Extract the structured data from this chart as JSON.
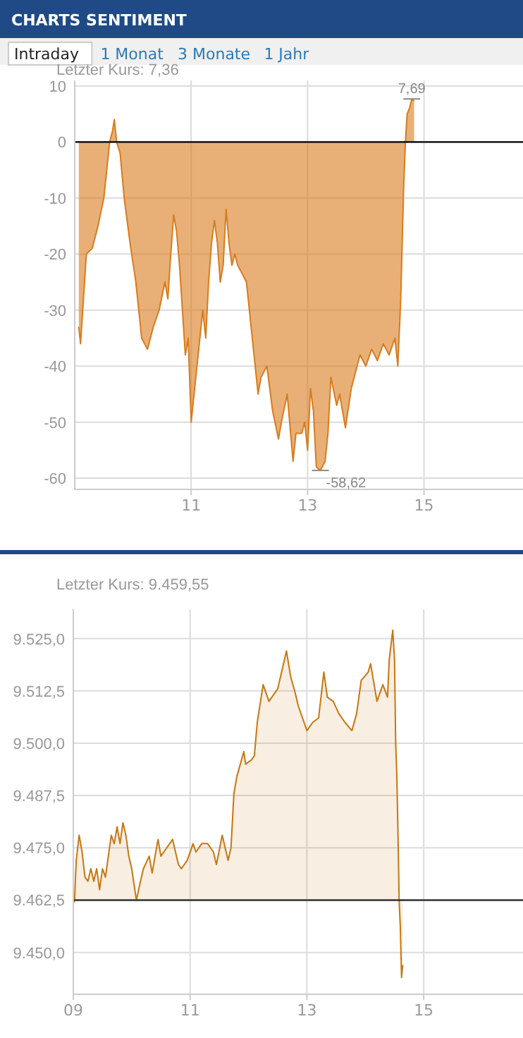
{
  "chart_data": [
    {
      "type": "area",
      "title": "CHARTS SENTIMENT",
      "subtitle": "Letzter Kurs: 7,36",
      "annotations": [
        "Intraday",
        "1 Monat",
        "3 Monate",
        "1 Jahr",
        {
          "text": "7,69",
          "x": 14.79,
          "y": 7.69
        },
        {
          "text": "-58,62",
          "x": 13.22,
          "y": -58.62
        }
      ],
      "xlim": [
        9,
        16.7
      ],
      "xticks": [
        11,
        13,
        15
      ],
      "ylim": [
        -62,
        11
      ],
      "yticks": [
        -60,
        -50,
        -40,
        -30,
        -20,
        -10,
        0,
        10
      ],
      "grid": true,
      "ref_lines": [
        {
          "axis": "y",
          "value": 0,
          "color": "#000000"
        }
      ],
      "series": [
        {
          "color": "#d97b1c",
          "x": [
            9.07,
            9.1,
            9.15,
            9.2,
            9.3,
            9.4,
            9.5,
            9.55,
            9.6,
            9.65,
            9.68,
            9.72,
            9.78,
            9.85,
            9.95,
            10.05,
            10.15,
            10.25,
            10.35,
            10.45,
            10.55,
            10.6,
            10.65,
            10.7,
            10.75,
            10.8,
            10.85,
            10.9,
            10.95,
            11.0,
            11.05,
            11.1,
            11.2,
            11.25,
            11.3,
            11.35,
            11.4,
            11.45,
            11.5,
            11.55,
            11.6,
            11.65,
            11.7,
            11.75,
            11.8,
            11.85,
            11.95,
            12.05,
            12.15,
            12.2,
            12.3,
            12.4,
            12.5,
            12.55,
            12.65,
            12.75,
            12.8,
            12.9,
            12.95,
            13.0,
            13.05,
            13.1,
            13.15,
            13.22,
            13.3,
            13.35,
            13.4,
            13.5,
            13.55,
            13.65,
            13.75,
            13.85,
            13.9,
            14.0,
            14.1,
            14.2,
            14.3,
            14.4,
            14.5,
            14.55,
            14.6,
            14.65,
            14.68,
            14.71,
            14.75,
            14.79,
            14.83
          ],
          "values": [
            -33,
            -36,
            -28,
            -20,
            -19,
            -15,
            -10,
            -5,
            0,
            2,
            4,
            0,
            -2,
            -10,
            -18,
            -25,
            -35,
            -37,
            -33,
            -30,
            -25,
            -28,
            -20,
            -13,
            -16,
            -22,
            -30,
            -38,
            -35,
            -50,
            -45,
            -40,
            -30,
            -35,
            -25,
            -18,
            -14,
            -18,
            -25,
            -22,
            -12,
            -18,
            -22,
            -20,
            -22,
            -23,
            -25,
            -35,
            -45,
            -42,
            -40,
            -48,
            -53,
            -50,
            -45,
            -57,
            -52,
            -52,
            -50,
            -55,
            -44,
            -48,
            -58,
            -58.62,
            -57,
            -52,
            -42,
            -47,
            -45,
            -51,
            -44,
            -40,
            -38,
            -40,
            -37,
            -39,
            -36,
            -38,
            -35,
            -40,
            -28,
            -8,
            0,
            5,
            6,
            7.69,
            7.36
          ]
        }
      ]
    },
    {
      "type": "area",
      "subtitle": "Letzter Kurs:  9.459,55",
      "xlim": [
        9,
        16.7
      ],
      "xticks": [
        {
          "value": 9,
          "label": "09"
        },
        11,
        13,
        15
      ],
      "ylim": [
        9440,
        9532
      ],
      "yticks": [
        {
          "value": 9450,
          "label": "9.450,0"
        },
        {
          "value": 9462.5,
          "label": "9.462,5"
        },
        {
          "value": 9475,
          "label": "9.475,0"
        },
        {
          "value": 9487.5,
          "label": "9.487,5"
        },
        {
          "value": 9500,
          "label": "9.500,0"
        },
        {
          "value": 9512.5,
          "label": "9.512,5"
        },
        {
          "value": 9525,
          "label": "9.525,0"
        }
      ],
      "grid": true,
      "ref_lines": [
        {
          "axis": "y",
          "value": 9462.5,
          "color": "#333333"
        }
      ],
      "series": [
        {
          "color": "#c9760f",
          "x": [
            9.02,
            9.05,
            9.1,
            9.15,
            9.2,
            9.25,
            9.3,
            9.35,
            9.4,
            9.45,
            9.5,
            9.55,
            9.6,
            9.65,
            9.7,
            9.75,
            9.8,
            9.85,
            9.9,
            9.95,
            10.0,
            10.08,
            10.15,
            10.2,
            10.3,
            10.35,
            10.45,
            10.5,
            10.6,
            10.7,
            10.8,
            10.85,
            10.95,
            11.05,
            11.1,
            11.2,
            11.3,
            11.4,
            11.45,
            11.55,
            11.65,
            11.7,
            11.75,
            11.8,
            11.92,
            11.95,
            12.05,
            12.1,
            12.15,
            12.25,
            12.35,
            12.45,
            12.5,
            12.65,
            12.72,
            12.8,
            12.85,
            12.95,
            13.0,
            13.1,
            13.2,
            13.29,
            13.35,
            13.45,
            13.55,
            13.65,
            13.77,
            13.85,
            13.93,
            14.05,
            14.09,
            14.2,
            14.3,
            14.38,
            14.41,
            14.47,
            14.5,
            14.52,
            14.54,
            14.56,
            14.58,
            14.6,
            14.62,
            14.64
          ],
          "values": [
            9462,
            9472,
            9478,
            9474,
            9468,
            9467,
            9470,
            9467,
            9470,
            9465,
            9470,
            9468,
            9473,
            9478,
            9476,
            9480,
            9476,
            9481,
            9478,
            9473,
            9470,
            9462.5,
            9467,
            9470,
            9473,
            9469,
            9477,
            9473,
            9475,
            9477,
            9471,
            9470,
            9472,
            9476,
            9474,
            9476,
            9476,
            9474,
            9471,
            9478,
            9472,
            9475,
            9488,
            9492,
            9498,
            9495,
            9496,
            9497,
            9505,
            9514,
            9510,
            9512,
            9513,
            9522,
            9516,
            9512,
            9509,
            9505,
            9503,
            9505,
            9506,
            9517,
            9511,
            9510,
            9507,
            9505,
            9503,
            9507,
            9515,
            9517,
            9519,
            9510,
            9514,
            9511,
            9520,
            9527,
            9520,
            9500,
            9492,
            9478,
            9462,
            9456,
            9444,
            9447
          ]
        }
      ]
    }
  ]
}
